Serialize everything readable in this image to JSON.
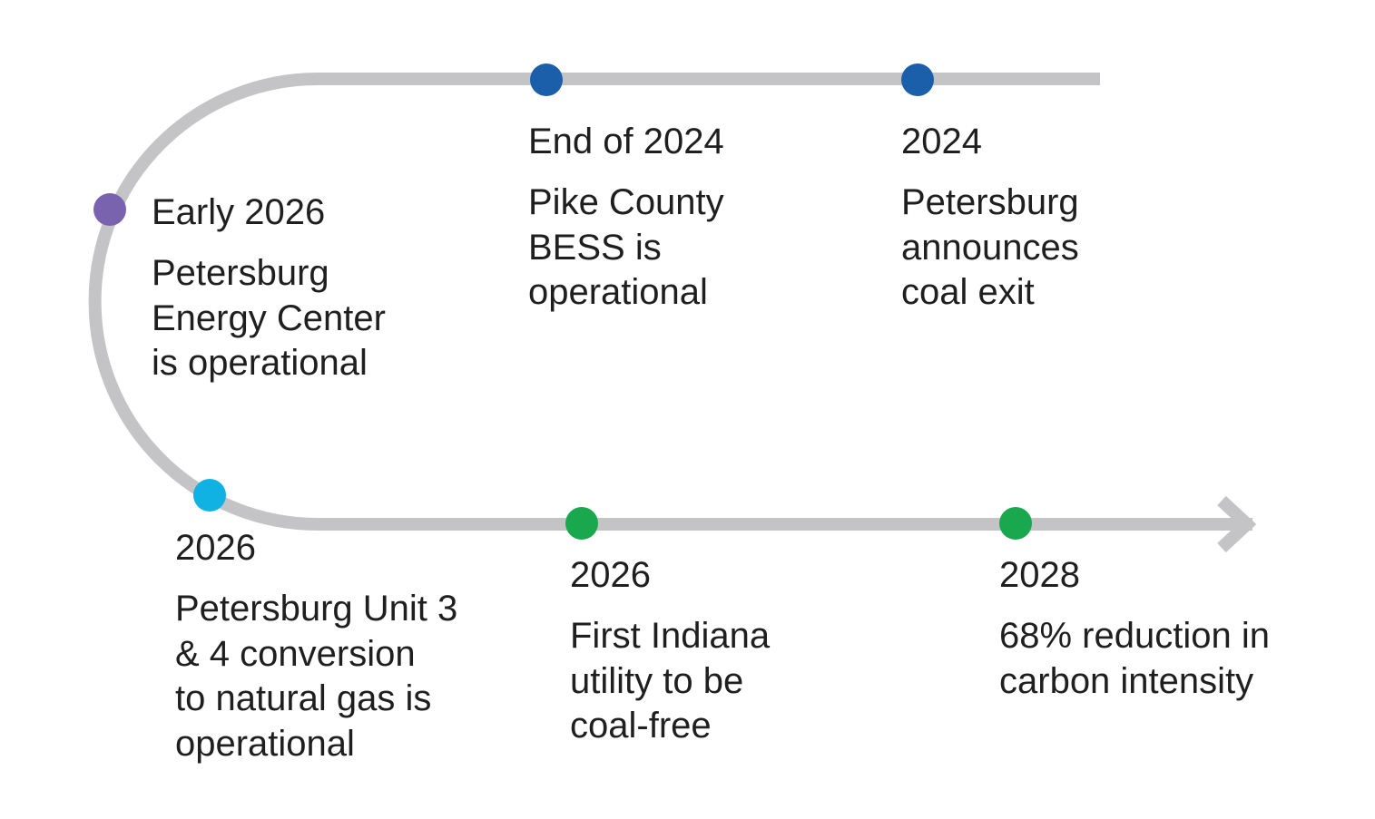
{
  "colors": {
    "track": "#c4c4c6",
    "blue": "#1b5eaa",
    "purple": "#7a63ae",
    "cyan": "#0fb2e2",
    "green": "#1aa84f"
  },
  "milestones": [
    {
      "date": "End of 2024",
      "text": "Pike County\nBESS is\noperational",
      "color": "blue"
    },
    {
      "date": "2024",
      "text": "Petersburg\nannounces\ncoal exit",
      "color": "blue"
    },
    {
      "date": "Early 2026",
      "text": "Petersburg\nEnergy Center\nis operational",
      "color": "purple"
    },
    {
      "date": "2026",
      "text": "Petersburg Unit 3\n& 4 conversion\nto natural gas is\noperational",
      "color": "cyan"
    },
    {
      "date": "2026",
      "text": "First Indiana\nutility to be\ncoal-free",
      "color": "green"
    },
    {
      "date": "2028",
      "text": "68% reduction in\ncarbon intensity",
      "color": "green"
    }
  ]
}
